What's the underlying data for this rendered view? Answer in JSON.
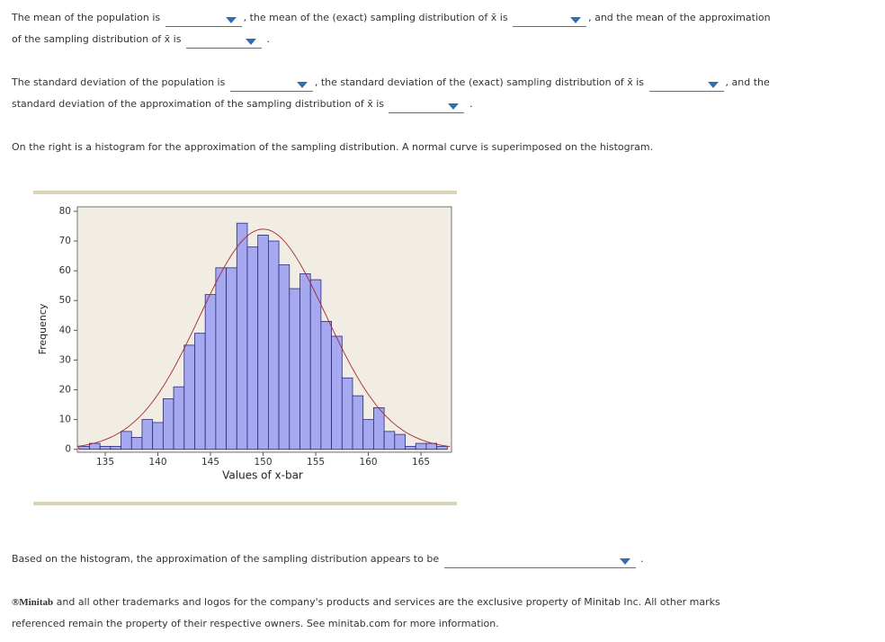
{
  "question_mean": {
    "text_1": "The mean of the population is",
    "text_2": ", the mean of the (exact) sampling distribution of x̄ is",
    "text_3": ", and the mean of the approximation",
    "text_4": "of the sampling distribution of x̄ is",
    "text_5": "."
  },
  "question_sd": {
    "text_1": "The standard deviation of the population is",
    "text_2": ", the standard deviation of the (exact) sampling distribution of x̄ is",
    "text_3": ", and the",
    "text_4": "standard deviation of the approximation of the sampling distribution of x̄ is",
    "text_5": "."
  },
  "histogram_intro": "On the right is a histogram for the approximation of the sampling distribution. A normal curve is superimposed on the histogram.",
  "chart_data": {
    "type": "histogram",
    "x_label": "Values of x-bar",
    "y_label": "Frequency",
    "bins": [
      132.5,
      133.5,
      134.5,
      135.5,
      136.5,
      137.5,
      138.5,
      139.5,
      140.5,
      141.5,
      142.5,
      143.5,
      144.5,
      145.5,
      146.5,
      147.5,
      148.5,
      149.5,
      150.5,
      151.5,
      152.5,
      153.5,
      154.5,
      155.5,
      156.5,
      157.5,
      158.5,
      159.5,
      160.5,
      161.5,
      162.5,
      163.5,
      164.5,
      165.5,
      166.5,
      167.5
    ],
    "counts": [
      1,
      2,
      1,
      1,
      6,
      4,
      10,
      9,
      17,
      21,
      35,
      39,
      52,
      61,
      61,
      76,
      68,
      72,
      70,
      62,
      54,
      59,
      57,
      43,
      38,
      24,
      18,
      10,
      14,
      6,
      5,
      1,
      2,
      2,
      1
    ],
    "color": "#a6a8f0",
    "edge_color": "#2b2b7a",
    "normal_curve": {
      "mean": 150,
      "sd": 6,
      "peak": 74,
      "color": "#a52a2a"
    },
    "xlim": [
      132.35,
      167.9
    ],
    "ylim": [
      -1,
      81.5
    ],
    "xticks": [
      135,
      140,
      145,
      150,
      155,
      160,
      165
    ],
    "yticks": [
      0,
      10,
      20,
      30,
      40,
      50,
      60,
      70,
      80
    ]
  },
  "question_shape": {
    "text_1": "Based on the histogram, the approximation of the sampling distribution appears to be",
    "text_2": "."
  },
  "footer": {
    "logo_mark": "®",
    "logo": "Minitab",
    "text_1": "and all other trademarks and logos for the company's products and services are the exclusive property of Minitab Inc. All other marks",
    "text_2": "referenced remain the property of their respective owners. See minitab.com for more information."
  }
}
